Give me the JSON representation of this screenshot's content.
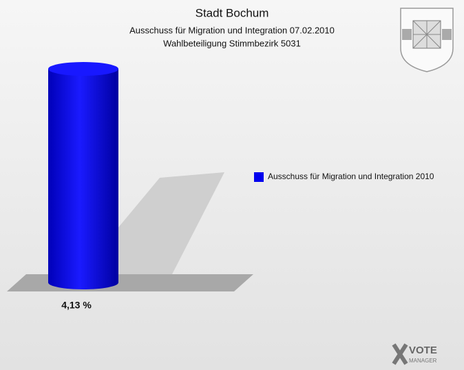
{
  "chart_data": {
    "type": "cylinder",
    "title": "Stadt Bochum",
    "subtitle": [
      "Ausschuss für Migration und Integration 07.02.2010",
      "Wahlbeteiligung Stimmbezirk 5031"
    ],
    "series": [
      {
        "name": "Ausschuss für Migration und Integration 2010",
        "color": "#0000ee",
        "values": [
          4.13
        ],
        "value_labels": [
          "4,13 %"
        ]
      }
    ],
    "logo": [
      "VOTE",
      "MANAGER"
    ]
  }
}
